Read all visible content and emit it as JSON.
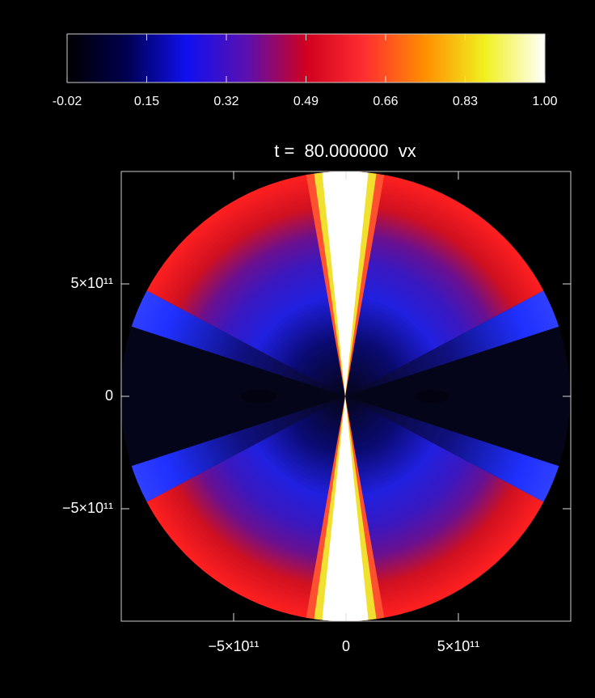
{
  "chart_data": {
    "type": "heatmap",
    "title": "t =  80.000000  vx",
    "xlim": [
      -1000000000000,
      1000000000000
    ],
    "ylim": [
      -1000000000000,
      1000000000000
    ],
    "xticks": [
      {
        "value": -500000000000,
        "label": "−5×10¹¹"
      },
      0,
      {
        "value": 500000000000,
        "label": "5×10¹¹"
      }
    ],
    "yticks": [
      {
        "value": -500000000000,
        "label": "−5×10¹¹"
      },
      0,
      {
        "value": 500000000000,
        "label": "5×10¹¹"
      }
    ],
    "colorbar": {
      "clim": [
        -0.02,
        1
      ],
      "ticks": [
        -0.02,
        0.15,
        0.32,
        0.49,
        0.66,
        0.83,
        {
          "value": 1,
          "label": "1.00"
        }
      ],
      "colormap": [
        "#000000",
        "#000050",
        "#1010f0",
        "#5a10b0",
        "#d00020",
        "#ff3030",
        "#ff9000",
        "#f0f020",
        "#ffffff"
      ]
    }
  }
}
